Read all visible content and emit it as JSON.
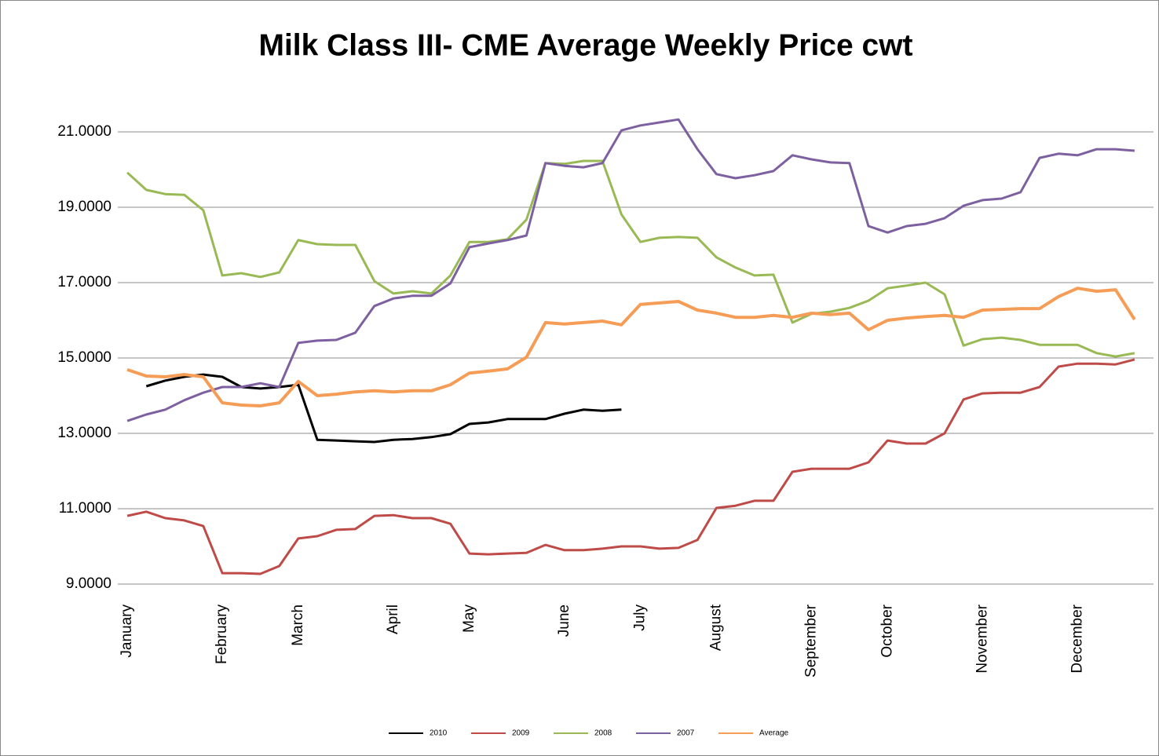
{
  "chart_data": {
    "type": "line",
    "title": "Milk Class III- CME Average Weekly Price cwt",
    "categories": [
      "January",
      null,
      null,
      null,
      null,
      "February",
      null,
      null,
      null,
      "March",
      null,
      null,
      null,
      null,
      "April",
      null,
      null,
      null,
      "May",
      null,
      null,
      null,
      null,
      "June",
      null,
      null,
      null,
      "July",
      null,
      null,
      null,
      "August",
      null,
      null,
      null,
      null,
      "September",
      null,
      null,
      null,
      "October",
      null,
      null,
      null,
      null,
      "November",
      null,
      null,
      null,
      null,
      "December",
      null,
      null,
      null
    ],
    "series": [
      {
        "name": "2010",
        "color": "#000000",
        "values": [
          null,
          14.25,
          14.4,
          14.5,
          14.56,
          14.5,
          14.23,
          14.19,
          14.23,
          14.29,
          12.83,
          12.81,
          12.79,
          12.77,
          12.83,
          12.85,
          12.9,
          12.98,
          13.25,
          13.29,
          13.38,
          13.38,
          13.38,
          13.52,
          13.63,
          13.6,
          13.63,
          null,
          null,
          null,
          null,
          null,
          null,
          null,
          null,
          null,
          null,
          null,
          null,
          null,
          null,
          null,
          null,
          null,
          null,
          null,
          null,
          null,
          null,
          null,
          null,
          null,
          null,
          null
        ]
      },
      {
        "name": "2009",
        "color": "#be4b48",
        "values": [
          10.81,
          10.92,
          10.75,
          10.69,
          10.54,
          9.29,
          9.29,
          9.27,
          9.48,
          10.21,
          10.27,
          10.44,
          10.46,
          10.81,
          10.83,
          10.75,
          10.75,
          10.6,
          9.81,
          9.79,
          9.81,
          9.83,
          10.04,
          9.9,
          9.9,
          9.94,
          10.0,
          10.0,
          9.94,
          9.96,
          10.17,
          11.02,
          11.08,
          11.21,
          11.21,
          11.98,
          12.06,
          12.06,
          12.06,
          12.23,
          12.81,
          12.73,
          12.73,
          13.0,
          13.9,
          14.06,
          14.08,
          14.08,
          14.23,
          14.77,
          14.85,
          14.85,
          14.83,
          14.96
        ]
      },
      {
        "name": "2008",
        "color": "#98b954",
        "values": [
          19.92,
          19.46,
          19.35,
          19.33,
          18.92,
          17.19,
          17.25,
          17.15,
          17.27,
          18.13,
          18.02,
          18.0,
          18.0,
          17.04,
          16.71,
          16.77,
          16.71,
          17.19,
          18.08,
          18.08,
          18.15,
          18.67,
          20.17,
          20.15,
          20.23,
          20.23,
          18.81,
          18.08,
          18.19,
          18.21,
          18.19,
          17.67,
          17.4,
          17.19,
          17.21,
          15.94,
          16.17,
          16.23,
          16.33,
          16.52,
          16.85,
          16.92,
          17.0,
          16.69,
          15.33,
          15.5,
          15.54,
          15.48,
          15.35,
          15.35,
          15.35,
          15.13,
          15.04,
          15.13
        ]
      },
      {
        "name": "2007",
        "color": "#7d60a0",
        "values": [
          13.33,
          13.5,
          13.63,
          13.88,
          14.08,
          14.23,
          14.23,
          14.33,
          14.23,
          15.4,
          15.46,
          15.48,
          15.67,
          16.38,
          16.58,
          16.65,
          16.65,
          16.98,
          17.94,
          18.04,
          18.13,
          18.25,
          20.17,
          20.1,
          20.06,
          20.17,
          21.04,
          21.17,
          21.25,
          21.33,
          20.54,
          19.88,
          19.77,
          19.85,
          19.96,
          20.38,
          20.27,
          20.19,
          20.17,
          18.5,
          18.33,
          18.5,
          18.56,
          18.71,
          19.04,
          19.19,
          19.23,
          19.4,
          20.31,
          20.42,
          20.38,
          20.54,
          20.54,
          20.5
        ]
      },
      {
        "name": "Average",
        "color": "#f59d56",
        "values": [
          14.69,
          14.52,
          14.5,
          14.56,
          14.5,
          13.81,
          13.75,
          13.73,
          13.81,
          14.38,
          14.0,
          14.04,
          14.1,
          14.13,
          14.1,
          14.13,
          14.13,
          14.29,
          14.6,
          14.65,
          14.71,
          15.02,
          15.94,
          15.9,
          15.94,
          15.98,
          15.88,
          16.42,
          16.46,
          16.5,
          16.27,
          16.19,
          16.08,
          16.08,
          16.13,
          16.08,
          16.19,
          16.15,
          16.19,
          15.75,
          16.0,
          16.06,
          16.1,
          16.13,
          16.08,
          16.27,
          16.29,
          16.31,
          16.31,
          16.63,
          16.85,
          16.77,
          16.81,
          16.02
        ]
      }
    ],
    "ylim": [
      9,
      22
    ],
    "yticks": [
      {
        "value": 9,
        "label": "9.0000"
      },
      {
        "value": 11,
        "label": "11.0000"
      },
      {
        "value": 13,
        "label": "13.0000"
      },
      {
        "value": 15,
        "label": "15.0000"
      },
      {
        "value": 17,
        "label": "17.0000"
      },
      {
        "value": 19,
        "label": "19.0000"
      },
      {
        "value": 21,
        "label": "21.0000"
      }
    ],
    "grid": true,
    "legend": "bottom"
  }
}
